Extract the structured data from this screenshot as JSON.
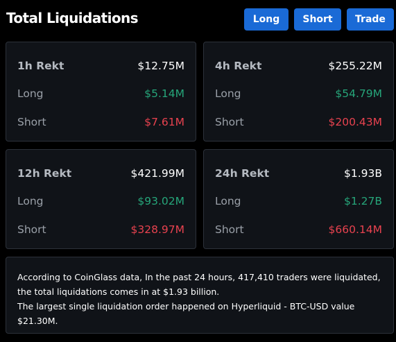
{
  "header": {
    "title": "Total Liquidations",
    "buttons": {
      "long": "Long",
      "short": "Short",
      "trade": "Trade"
    },
    "button_color": "#1a6ad6"
  },
  "colors": {
    "long": "#26a67a",
    "short": "#e8424f",
    "card_bg": "#101318",
    "card_border": "#2c313a"
  },
  "cards": [
    {
      "period": "1h Rekt",
      "total": "$12.75M",
      "long_label": "Long",
      "long": "$5.14M",
      "short_label": "Short",
      "short": "$7.61M"
    },
    {
      "period": "4h Rekt",
      "total": "$255.22M",
      "long_label": "Long",
      "long": "$54.79M",
      "short_label": "Short",
      "short": "$200.43M"
    },
    {
      "period": "12h Rekt",
      "total": "$421.99M",
      "long_label": "Long",
      "long": "$93.02M",
      "short_label": "Short",
      "short": "$328.97M"
    },
    {
      "period": "24h Rekt",
      "total": "$1.93B",
      "long_label": "Long",
      "long": "$1.27B",
      "short_label": "Short",
      "short": "$660.14M"
    }
  ],
  "info": {
    "line1": "According to CoinGlass data, In the past 24 hours, 417,410 traders were liquidated, the total liquidations comes in at $1.93 billion.",
    "line2": "The largest single liquidation order happened on Hyperliquid - BTC-USD value $21.30M."
  }
}
